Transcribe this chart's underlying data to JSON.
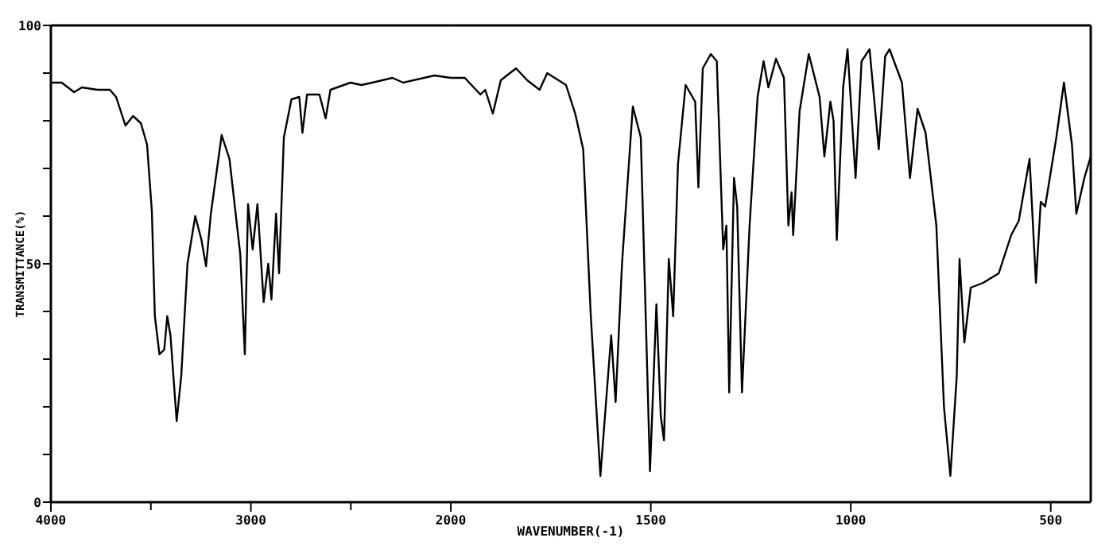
{
  "chart_data": [
    {
      "type": "line",
      "ylabel": "TRANSMITTANCE(%)",
      "xlim": [
        4000,
        2000
      ],
      "ylim": [
        0,
        100
      ],
      "xticks": [
        4000,
        {
          "value": 3500,
          "label": null
        },
        3000,
        {
          "value": 2500,
          "label": null
        }
      ],
      "yticks": [
        0,
        {
          "value": 10,
          "label": null
        },
        {
          "value": 20,
          "label": null
        },
        {
          "value": 30,
          "label": null
        },
        {
          "value": 40,
          "label": null
        },
        50,
        {
          "value": 60,
          "label": null
        },
        {
          "value": 70,
          "label": null
        },
        {
          "value": 80,
          "label": null
        },
        {
          "value": 90,
          "label": null
        },
        100
      ],
      "grid": false,
      "line_style": "solid",
      "series": [
        {
          "color": "#000000",
          "x": [
            4000,
            3946,
            3884,
            3845,
            3767,
            3705,
            3674,
            3627,
            3589,
            3550,
            3519,
            3495,
            3480,
            3457,
            3433,
            3418,
            3402,
            3371,
            3348,
            3317,
            3278,
            3247,
            3224,
            3200,
            3146,
            3107,
            3053,
            3030,
            3014,
            2991,
            2967,
            2936,
            2913,
            2897,
            2874,
            2859,
            2835,
            2797,
            2758,
            2742,
            2719,
            2657,
            2626,
            2602,
            2502,
            2447,
            2393,
            2292,
            2238,
            2082,
            2000
          ],
          "values": [
            88,
            88,
            86,
            87,
            86.5,
            86.5,
            85,
            79,
            81,
            79.5,
            75,
            61,
            39,
            31,
            32,
            39,
            35,
            17,
            26.5,
            50,
            60,
            55,
            49.5,
            60.5,
            77,
            72,
            52,
            31,
            62.5,
            53,
            62.5,
            42,
            50,
            42.5,
            60.5,
            48,
            76.5,
            84.5,
            85,
            77.5,
            85.5,
            85.5,
            80.5,
            86.5,
            88,
            87.5,
            88,
            89,
            88,
            89.5,
            89
          ]
        }
      ]
    },
    {
      "type": "line",
      "xlabel": "WAVENUMBER(-1)",
      "tick_labels": "x",
      "xlim": [
        2000,
        400
      ],
      "ylim": [
        0,
        100
      ],
      "xticks": [
        2000,
        1500,
        1000,
        500
      ],
      "grid": false,
      "line_style": "solid",
      "series": [
        {
          "color": "#000000",
          "x": [
            2000,
            1965,
            1926,
            1914,
            1895,
            1875,
            1837,
            1809,
            1778,
            1759,
            1712,
            1689,
            1669,
            1650,
            1626,
            1611,
            1599,
            1588,
            1572,
            1545,
            1525,
            1502,
            1486,
            1475,
            1467,
            1455,
            1444,
            1432,
            1413,
            1389,
            1381,
            1370,
            1350,
            1335,
            1319,
            1311,
            1304,
            1292,
            1284,
            1272,
            1253,
            1233,
            1218,
            1206,
            1187,
            1167,
            1156,
            1148,
            1144,
            1128,
            1105,
            1078,
            1066,
            1051,
            1043,
            1035,
            1019,
            1008,
            988,
            973,
            953,
            930,
            914,
            903,
            872,
            852,
            833,
            813,
            786,
            767,
            751,
            735,
            728,
            716,
            700,
            669,
            630,
            599,
            580,
            553,
            537,
            525,
            514,
            486,
            467,
            447,
            436,
            416,
            400
          ],
          "values": [
            89,
            89,
            85.5,
            86.5,
            81.5,
            88.5,
            91,
            88.5,
            86.5,
            90,
            87.5,
            81.5,
            74,
            39,
            5.5,
            22,
            35,
            21,
            50,
            83,
            76.5,
            6.5,
            41.5,
            18,
            13,
            51,
            39,
            71,
            87.5,
            84,
            66,
            91,
            94,
            92.5,
            53,
            58,
            23,
            68,
            62,
            23,
            58,
            85,
            92.5,
            87,
            93,
            89,
            58,
            65,
            56,
            82,
            94,
            85,
            72.5,
            84,
            80,
            55,
            87,
            95,
            68,
            92.5,
            95,
            74,
            93.5,
            95,
            88,
            68,
            82.5,
            77.5,
            58,
            20,
            5.5,
            26.5,
            51,
            33.5,
            45,
            46,
            48,
            56,
            59,
            72,
            46,
            63,
            62,
            76.5,
            88,
            75,
            60.5,
            68,
            72.5
          ]
        }
      ]
    }
  ]
}
